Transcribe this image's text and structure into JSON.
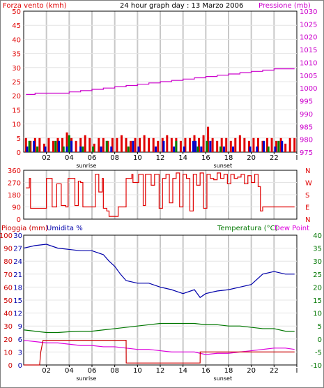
{
  "title": "24 hour graph day : 13 Marzo 2006",
  "colors": {
    "wind": "#e00000",
    "gust": "#0000cc",
    "calm": "#008000",
    "pressure": "#cc00cc",
    "direction": "#e00000",
    "rain": "#cc0000",
    "humidity": "#0000aa",
    "temperature": "#007700",
    "dewpoint": "#dd00dd",
    "grid": "#c8c8c8",
    "frame": "#000000"
  },
  "x_ticks": [
    "02",
    "04",
    "06",
    "08",
    "10",
    "12",
    "14",
    "16",
    "18",
    "20",
    "22",
    "I"
  ],
  "sun_labels": {
    "sunrise": "sunrise",
    "sunset": "sunset"
  },
  "chart_data": [
    {
      "type": "line",
      "name": "wind-pressure",
      "left_title": "Forza vento (kmh)",
      "right_title": "Pressione (mb)",
      "left_ticks": [
        "50",
        "45",
        "40",
        "35",
        "30",
        "25",
        "20",
        "15",
        "10",
        "5",
        "0"
      ],
      "right_ticks": [
        "1030",
        "1025",
        "1020",
        "1015",
        "1010",
        "1005",
        "1000",
        "995",
        "990",
        "985",
        "980",
        "975"
      ],
      "ylim_left": [
        0,
        50
      ],
      "ylim_right": [
        975,
        1030
      ],
      "xlim": [
        0,
        24
      ],
      "pressure": {
        "x": [
          0.2,
          1,
          2,
          3,
          4,
          5,
          6,
          7,
          8,
          9,
          10,
          11,
          12,
          13,
          14,
          15,
          16,
          17,
          18,
          19,
          20,
          21,
          22,
          23,
          23.8
        ],
        "y": [
          997.5,
          998,
          998,
          998,
          998.5,
          999,
          999.5,
          1000,
          1000.5,
          1001,
          1001.5,
          1002,
          1002.5,
          1003,
          1003.5,
          1004,
          1004.5,
          1005,
          1005.5,
          1006,
          1006.5,
          1007,
          1007.5,
          1007.5,
          1007.5
        ]
      },
      "wind": {
        "x": [
          0.2,
          0.6,
          1.0,
          1.4,
          1.8,
          2.2,
          2.6,
          3.0,
          3.4,
          3.8,
          4.2,
          4.6,
          5.0,
          5.4,
          5.8,
          6.2,
          6.6,
          7.0,
          7.4,
          7.8,
          8.2,
          8.6,
          9.0,
          9.4,
          9.8,
          10.2,
          10.6,
          11.0,
          11.4,
          11.8,
          12.2,
          12.6,
          13.0,
          13.4,
          13.8,
          14.2,
          14.6,
          15.0,
          15.4,
          15.8,
          16.2,
          16.6,
          17.0,
          17.4,
          17.8,
          18.2,
          18.6,
          19.0,
          19.4,
          19.8,
          20.2,
          20.6,
          21.0,
          21.4,
          21.8,
          22.2,
          22.6,
          23.0,
          23.4,
          23.8
        ],
        "y": [
          5,
          4,
          5,
          5,
          3,
          5,
          4,
          5,
          5,
          7,
          5,
          4,
          5,
          6,
          5,
          3,
          5,
          5,
          4,
          5,
          5,
          6,
          5,
          4,
          5,
          5,
          6,
          5,
          5,
          4,
          5,
          6,
          5,
          5,
          4,
          5,
          5,
          6,
          5,
          6,
          9,
          5,
          4,
          5,
          5,
          4,
          5,
          6,
          5,
          4,
          5,
          5,
          4,
          5,
          5,
          4,
          5,
          3,
          5,
          5
        ]
      },
      "gust": {
        "x": [
          0.3,
          0.9,
          1.9,
          3.1,
          3.8,
          4.2,
          5.0,
          6.8,
          7.7,
          9.6,
          10.1,
          11.6,
          12.3,
          13.2,
          14.1,
          14.9,
          15.1,
          15.6,
          16.4,
          17.6,
          18.4,
          19.9,
          20.5,
          21.1,
          22.1,
          22.7
        ],
        "y": [
          1,
          2,
          1,
          2,
          1,
          2,
          1,
          1,
          1,
          2,
          1,
          1,
          2,
          1,
          1,
          2,
          2,
          1,
          2,
          1,
          1,
          1,
          1,
          2,
          1,
          2
        ]
      },
      "calm": {
        "x": [
          0.5,
          1.2,
          2.8,
          3.5,
          4.0,
          5.2,
          6.1,
          7.3,
          9.2,
          13.4,
          15.3,
          16.1,
          17.3,
          21.5,
          22.4
        ],
        "y": [
          2,
          1,
          2,
          1,
          3,
          1,
          1,
          2,
          1,
          2,
          1,
          2,
          1,
          1,
          2
        ]
      }
    },
    {
      "type": "line",
      "name": "wind-direction",
      "left_ticks": [
        "360",
        "270",
        "180",
        "90",
        "0"
      ],
      "right_ticks": [
        "N",
        "W",
        "S",
        "E",
        "N"
      ],
      "ylim": [
        0,
        360
      ],
      "xlim": [
        0,
        24
      ],
      "direction": {
        "x": [
          0.2,
          0.5,
          0.6,
          1.5,
          2.0,
          2.5,
          2.9,
          3.3,
          3.7,
          3.9,
          4.2,
          4.5,
          4.8,
          5.0,
          5.2,
          6.0,
          6.3,
          6.6,
          6.9,
          7.0,
          7.3,
          7.5,
          8.1,
          8.3,
          9.0,
          9.5,
          9.6,
          10.1,
          10.5,
          10.7,
          11.2,
          11.5,
          11.9,
          12.2,
          12.5,
          12.8,
          13.1,
          13.4,
          13.7,
          14.0,
          14.3,
          14.6,
          14.9,
          15.2,
          15.5,
          15.8,
          16.1,
          16.4,
          16.7,
          17.0,
          17.3,
          17.6,
          17.9,
          18.2,
          18.5,
          18.8,
          19.1,
          19.4,
          19.7,
          20.0,
          20.3,
          20.6,
          20.8,
          21.0,
          22.0,
          23.0,
          23.8
        ],
        "y": [
          230,
          300,
          80,
          80,
          300,
          90,
          260,
          100,
          90,
          300,
          300,
          100,
          280,
          270,
          90,
          90,
          330,
          200,
          300,
          80,
          60,
          20,
          20,
          90,
          300,
          330,
          270,
          330,
          100,
          330,
          250,
          330,
          80,
          300,
          330,
          120,
          300,
          340,
          90,
          330,
          300,
          60,
          330,
          250,
          340,
          80,
          330,
          300,
          290,
          340,
          300,
          330,
          260,
          330,
          300,
          310,
          330,
          260,
          320,
          270,
          330,
          240,
          60,
          90,
          90,
          90,
          90
        ]
      }
    },
    {
      "type": "line",
      "name": "rain-humidity-temperature",
      "left_title_rain": "Pioggia (mm)",
      "left_title_hum": "Umidita %",
      "right_title_temp": "Temperatura (°C)",
      "right_title_dew": "Dew Point",
      "rain_ticks": [
        "100",
        "90",
        "80",
        "70",
        "60",
        "50",
        "40",
        "30",
        "20",
        "10",
        "0"
      ],
      "hum_ticks": [
        "30",
        "27",
        "24",
        "21",
        "18",
        "15",
        "12",
        "9",
        "6",
        "3",
        "0"
      ],
      "temp_ticks": [
        "40",
        "35",
        "30",
        "25",
        "20",
        "15",
        "10",
        "5",
        "0",
        "-5",
        "-10"
      ],
      "ylim_rain": [
        0,
        100
      ],
      "ylim_temp": [
        -10,
        40
      ],
      "xlim": [
        0,
        24
      ],
      "humidity": {
        "x": [
          0.0,
          1.0,
          2.0,
          3.0,
          4.0,
          5.0,
          6.0,
          7.0,
          7.5,
          8.0,
          8.5,
          9.0,
          10.0,
          11.0,
          12.0,
          13.0,
          14.0,
          15.0,
          15.5,
          16.0,
          17.0,
          18.0,
          19.0,
          20.0,
          21.0,
          22.0,
          23.0,
          23.8
        ],
        "y": [
          90,
          92,
          93,
          90,
          89,
          88,
          88,
          85,
          80,
          76,
          70,
          65,
          63,
          63,
          60,
          58,
          55,
          58,
          52,
          55,
          57,
          58,
          60,
          62,
          70,
          72,
          70,
          70
        ]
      },
      "temperature": {
        "x": [
          0,
          1,
          2,
          3,
          4,
          5,
          6,
          7,
          8,
          9,
          10,
          11,
          12,
          13,
          14,
          15,
          16,
          17,
          18,
          19,
          20,
          21,
          22,
          23,
          23.8
        ],
        "y": [
          3.5,
          3,
          2.5,
          2.5,
          2.8,
          3,
          3,
          3.5,
          4,
          4.5,
          5,
          5.5,
          6,
          6,
          6,
          6,
          5.5,
          5.5,
          5,
          5,
          4.5,
          4,
          4,
          3,
          3
        ]
      },
      "dewpoint": {
        "x": [
          0,
          1,
          2,
          3,
          4,
          5,
          6,
          7,
          8,
          9,
          10,
          11,
          12,
          13,
          14,
          15,
          16,
          17,
          18,
          19,
          20,
          21,
          22,
          23,
          23.8
        ],
        "y": [
          -0.5,
          -1,
          -1.5,
          -1.5,
          -2,
          -2.5,
          -2.5,
          -3,
          -3,
          -3.5,
          -4,
          -4,
          -4.5,
          -5,
          -5,
          -5,
          -6,
          -5.5,
          -5.5,
          -5,
          -4.5,
          -4,
          -3.5,
          -3.5,
          -4
        ]
      },
      "rain": {
        "x": [
          0.0,
          1.4,
          1.5,
          1.7,
          3.0,
          6.0,
          9.0,
          9.01,
          12.0,
          15.0,
          15.5,
          15.51,
          18.0,
          21.0,
          23.8
        ],
        "y": [
          0,
          0,
          10,
          19,
          19,
          19,
          19,
          1.5,
          1.5,
          1.5,
          1.5,
          10,
          10,
          10,
          10
        ]
      }
    }
  ]
}
